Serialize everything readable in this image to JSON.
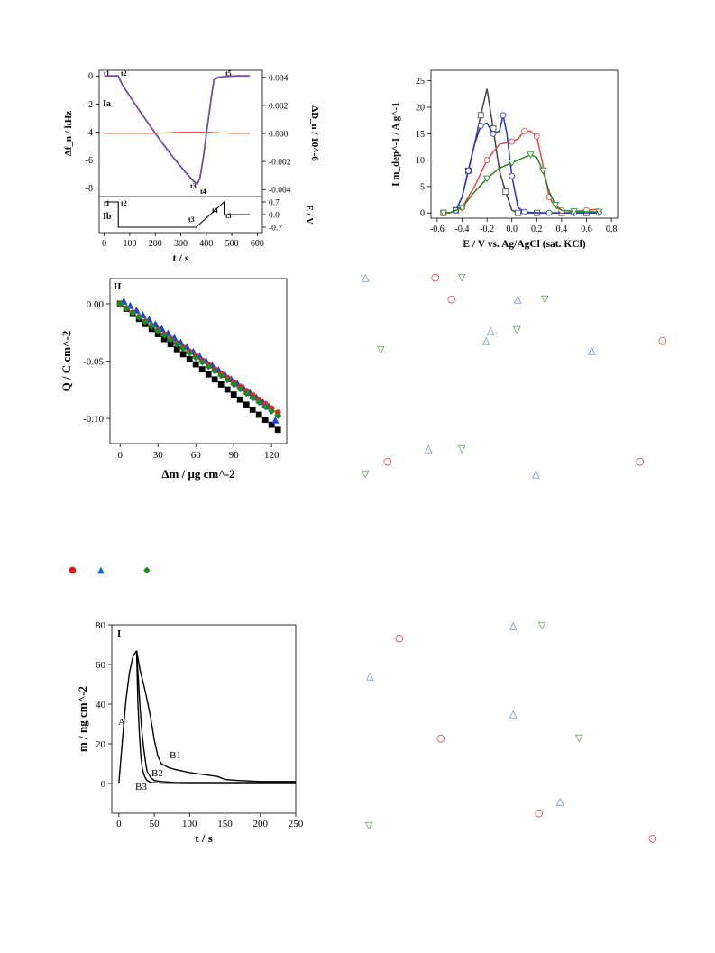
{
  "chart_data": [
    {
      "type": "line",
      "panel": "I",
      "sub_panels": [
        "Ia",
        "Ib"
      ],
      "xlabel": "t / s",
      "ylabel_left": "Δf_n / kHz",
      "ylabel_right_top": "ΔD_n / 10^-6",
      "ylabel_right_bottom": "E / V",
      "x_ticks": [
        "0",
        "100",
        "200",
        "300",
        "400",
        "500",
        "600"
      ],
      "y_ticks_left": [
        "0",
        "-2",
        "-4",
        "-6",
        "-8"
      ],
      "y_ticks_right_top": [
        "0.004",
        "0.002",
        "0.000",
        "-0.002",
        "-0.004"
      ],
      "y_ticks_right_bottom": [
        "0.7",
        "0.0",
        "-0.7"
      ],
      "xlim": [
        -20,
        620
      ],
      "ylim_left": [
        -8.6,
        0.4
      ],
      "ylim_right_top": [
        -0.0045,
        0.0045
      ],
      "ylim_right_bottom": [
        -1,
        1
      ],
      "time_markers": [
        "t1",
        "t2",
        "t3",
        "t4",
        "t5"
      ],
      "series": [
        {
          "name": "",
          "axis": "left",
          "color": "#7a4aa8",
          "x": [
            0,
            55,
            70,
            120,
            170,
            220,
            270,
            320,
            350,
            365,
            375,
            390,
            405,
            420,
            430,
            445,
            470,
            520,
            570
          ],
          "y": [
            0,
            0,
            -0.6,
            -2.0,
            -3.3,
            -4.6,
            -5.8,
            -6.9,
            -7.5,
            -7.7,
            -7.3,
            -5.6,
            -3.5,
            -1.5,
            -0.3,
            -0.1,
            -0.05,
            0,
            0
          ]
        },
        {
          "name": "",
          "axis": "right_top",
          "color": "#e06040",
          "x": [
            0,
            100,
            200,
            300,
            400,
            500,
            570
          ],
          "y": [
            0.0,
            0.0,
            0.0,
            0.0001,
            0.0001,
            0.0,
            0.0
          ]
        },
        {
          "name": "",
          "axis": "right_bottom",
          "color": "#000000",
          "x": [
            0,
            55,
            55,
            360,
            470,
            470,
            570
          ],
          "y": [
            0.7,
            0.7,
            -0.7,
            -0.7,
            0.7,
            0.0,
            0.0
          ]
        }
      ]
    },
    {
      "type": "line",
      "xlabel": "E / V vs. Ag/AgCl (sat. KCl)",
      "ylabel": "I m_dep^-1 / A g^-1",
      "x_ticks": [
        "-0.6",
        "-0.4",
        "-0.2",
        "0.0",
        "0.2",
        "0.4",
        "0.6",
        "0.8"
      ],
      "y_ticks": [
        "0",
        "5",
        "10",
        "15",
        "20",
        "25"
      ],
      "xlim": [
        -0.65,
        0.85
      ],
      "ylim": [
        -1,
        27
      ],
      "series": [
        {
          "name": "",
          "color": "#444444",
          "marker": "square",
          "x": [
            -0.55,
            -0.5,
            -0.45,
            -0.4,
            -0.35,
            -0.3,
            -0.25,
            -0.2,
            -0.15,
            -0.1,
            -0.05,
            0.0,
            0.05,
            0.1,
            0.2,
            0.3,
            0.4,
            0.5,
            0.6,
            0.7
          ],
          "y": [
            0,
            0,
            0.5,
            3,
            8,
            13,
            18.5,
            23.5,
            16,
            8,
            4,
            0.5,
            0,
            0,
            0,
            0,
            0,
            0,
            0,
            0
          ]
        },
        {
          "name": "",
          "color": "#2233cc",
          "marker": "circle",
          "x": [
            -0.55,
            -0.5,
            -0.45,
            -0.4,
            -0.35,
            -0.3,
            -0.25,
            -0.2,
            -0.15,
            -0.1,
            -0.07,
            -0.04,
            0.0,
            0.05,
            0.1,
            0.2,
            0.3,
            0.4,
            0.5,
            0.6,
            0.7
          ],
          "y": [
            0,
            0,
            0.5,
            3,
            8,
            13,
            16.5,
            17,
            15,
            15.5,
            18.5,
            15,
            7,
            1,
            0.2,
            0,
            0,
            0,
            0,
            0,
            0
          ]
        },
        {
          "name": "",
          "color": "#ee4444",
          "marker": "circle",
          "x": [
            -0.55,
            -0.5,
            -0.4,
            -0.3,
            -0.2,
            -0.1,
            0.0,
            0.05,
            0.1,
            0.15,
            0.2,
            0.25,
            0.3,
            0.35,
            0.4,
            0.5,
            0.6,
            0.7
          ],
          "y": [
            0,
            0,
            1,
            5,
            10,
            13,
            13.5,
            14,
            15.5,
            15.5,
            14.5,
            9,
            3,
            1,
            0.5,
            0.3,
            0.5,
            0.7
          ]
        },
        {
          "name": "",
          "color": "#228822",
          "marker": "triangle-down",
          "x": [
            -0.55,
            -0.5,
            -0.4,
            -0.3,
            -0.2,
            -0.1,
            0.0,
            0.1,
            0.15,
            0.2,
            0.25,
            0.3,
            0.35,
            0.4,
            0.5,
            0.6,
            0.7
          ],
          "y": [
            0,
            0,
            1,
            4,
            6.5,
            8.5,
            9.5,
            10.5,
            11,
            10.5,
            8,
            4,
            1.5,
            0.5,
            0.3,
            0.2,
            0.2
          ]
        }
      ]
    },
    {
      "type": "scatter",
      "panel": "II",
      "xlabel": "Δm / μg cm^-2",
      "ylabel": "Q / C cm^-2",
      "x_ticks": [
        "0",
        "30",
        "60",
        "90",
        "120"
      ],
      "y_ticks": [
        "0.00",
        "-0.05",
        "-0.10"
      ],
      "xlim": [
        -8,
        132
      ],
      "ylim": [
        -0.122,
        0.022
      ],
      "series": [
        {
          "name": "",
          "color": "#000000",
          "marker": "square",
          "x": [
            0,
            5,
            10,
            15,
            20,
            25,
            30,
            35,
            40,
            45,
            50,
            55,
            60,
            65,
            70,
            75,
            80,
            85,
            90,
            95,
            100,
            105,
            110,
            115,
            120,
            125
          ],
          "y": [
            0,
            -0.0044,
            -0.0088,
            -0.0132,
            -0.0176,
            -0.022,
            -0.0264,
            -0.0308,
            -0.0352,
            -0.0396,
            -0.044,
            -0.0484,
            -0.0528,
            -0.0572,
            -0.0616,
            -0.066,
            -0.0704,
            -0.0748,
            -0.0792,
            -0.0836,
            -0.088,
            -0.0924,
            -0.0968,
            -0.1012,
            -0.1056,
            -0.11
          ]
        },
        {
          "name": "",
          "color": "#1144ee",
          "marker": "triangle-up",
          "x": [
            3,
            8,
            13,
            18,
            23,
            28,
            33,
            38,
            43,
            48,
            53,
            58,
            63,
            68,
            73,
            78,
            83,
            88,
            93,
            98,
            103,
            108,
            113,
            118,
            123
          ],
          "y": [
            0.002,
            -0.0018,
            -0.0058,
            -0.0098,
            -0.0138,
            -0.0178,
            -0.0218,
            -0.0258,
            -0.0298,
            -0.0338,
            -0.0378,
            -0.0418,
            -0.0458,
            -0.0498,
            -0.0538,
            -0.0578,
            -0.0618,
            -0.0658,
            -0.0698,
            -0.0738,
            -0.0778,
            -0.0818,
            -0.0858,
            -0.0898,
            -0.1018
          ]
        },
        {
          "name": "",
          "color": "#ee2222",
          "marker": "circle",
          "x": [
            0,
            5,
            10,
            15,
            20,
            25,
            30,
            35,
            40,
            45,
            50,
            55,
            60,
            65,
            70,
            75,
            80,
            85,
            90,
            95,
            100,
            105,
            110,
            115,
            120,
            125
          ],
          "y": [
            0,
            -0.0038,
            -0.0076,
            -0.0114,
            -0.0152,
            -0.019,
            -0.0228,
            -0.0266,
            -0.0304,
            -0.0342,
            -0.038,
            -0.0418,
            -0.0456,
            -0.0494,
            -0.0532,
            -0.057,
            -0.0608,
            -0.0646,
            -0.0684,
            -0.0722,
            -0.076,
            -0.0798,
            -0.0836,
            -0.0874,
            -0.0912,
            -0.095
          ]
        },
        {
          "name": "",
          "color": "#228822",
          "marker": "diamond",
          "x": [
            0,
            5,
            10,
            15,
            20,
            25,
            30,
            35,
            40,
            45,
            50,
            55,
            60,
            65,
            70,
            75,
            80,
            85,
            90,
            95,
            100,
            105,
            110,
            115,
            120,
            125
          ],
          "y": [
            0,
            -0.0039,
            -0.0078,
            -0.0117,
            -0.0156,
            -0.0195,
            -0.0234,
            -0.0273,
            -0.0312,
            -0.0351,
            -0.039,
            -0.0429,
            -0.0468,
            -0.0507,
            -0.0546,
            -0.0585,
            -0.0624,
            -0.0663,
            -0.0702,
            -0.0741,
            -0.078,
            -0.0819,
            -0.0858,
            -0.0897,
            -0.0936,
            -0.0975
          ]
        }
      ]
    },
    {
      "type": "line",
      "panel": "I",
      "xlabel": "t / s",
      "ylabel": "m / ng cm^-2",
      "x_ticks": [
        "0",
        "50",
        "100",
        "150",
        "200",
        "250"
      ],
      "y_ticks": [
        "0",
        "20",
        "40",
        "60",
        "80"
      ],
      "xlim": [
        -10,
        250
      ],
      "ylim": [
        -15,
        80
      ],
      "curve_labels": [
        "A",
        "B1",
        "B2",
        "B3"
      ],
      "series": [
        {
          "name": "A",
          "color": "#000000",
          "x": [
            0,
            5,
            10,
            15,
            20,
            25
          ],
          "y": [
            0,
            22,
            42,
            56,
            64,
            67
          ]
        },
        {
          "name": "B1",
          "color": "#000000",
          "x": [
            25,
            30,
            35,
            40,
            45,
            50,
            55,
            60,
            70,
            80,
            100,
            120,
            140,
            150,
            170,
            200,
            250
          ],
          "y": [
            67,
            57,
            50,
            42,
            33,
            22,
            14,
            10,
            8,
            7,
            5.5,
            4.5,
            3.5,
            2,
            1.5,
            1,
            1
          ]
        },
        {
          "name": "B2",
          "color": "#000000",
          "x": [
            25,
            28,
            30,
            32,
            35,
            38,
            40,
            45,
            50,
            60,
            80,
            100,
            150,
            250
          ],
          "y": [
            67,
            50,
            38,
            28,
            18,
            10,
            6,
            3,
            1.5,
            1,
            0.5,
            0.5,
            0.5,
            0.5
          ]
        },
        {
          "name": "B3",
          "color": "#000000",
          "x": [
            25,
            27,
            29,
            31,
            33,
            35,
            37,
            40,
            45,
            60,
            100,
            250
          ],
          "y": [
            67,
            40,
            25,
            14,
            8,
            5,
            3,
            1.5,
            0.5,
            0.2,
            0,
            0
          ]
        }
      ]
    }
  ],
  "legend_symbols": {
    "items": [
      {
        "symbol": "●",
        "color": "#ee1111"
      },
      {
        "symbol": "▲",
        "color": "#1166cc"
      },
      {
        "symbol": "◆",
        "color": "#228822"
      }
    ]
  },
  "text_symbols": [
    {
      "symbol": "△",
      "color": "#3a78c0"
    },
    {
      "symbol": "○",
      "color": "#d62020"
    },
    {
      "symbol": "▽",
      "color": "#2a8a2a"
    },
    {
      "symbol": "○",
      "color": "#d62020"
    },
    {
      "symbol": "△",
      "color": "#3a78c0"
    },
    {
      "symbol": "▽",
      "color": "#2a8a2a"
    },
    {
      "symbol": "△",
      "color": "#3a78c0"
    },
    {
      "symbol": "▽",
      "color": "#2a8a2a"
    },
    {
      "symbol": "△",
      "color": "#3a78c0"
    },
    {
      "symbol": "○",
      "color": "#d62020"
    },
    {
      "symbol": "▽",
      "color": "#2a8a2a"
    },
    {
      "symbol": "△",
      "color": "#3a78c0"
    },
    {
      "symbol": "△",
      "color": "#3a78c0"
    },
    {
      "symbol": "▽",
      "color": "#2a8a2a"
    },
    {
      "symbol": "○",
      "color": "#d62020"
    },
    {
      "symbol": "○",
      "color": "#d62020"
    },
    {
      "symbol": "▽",
      "color": "#2a8a2a"
    },
    {
      "symbol": "△",
      "color": "#3a78c0"
    },
    {
      "symbol": "△",
      "color": "#3a78c0"
    },
    {
      "symbol": "▽",
      "color": "#2a8a2a"
    },
    {
      "symbol": "○",
      "color": "#d62020"
    },
    {
      "symbol": "△",
      "color": "#3a78c0"
    },
    {
      "symbol": "△",
      "color": "#3a78c0"
    },
    {
      "symbol": "○",
      "color": "#d62020"
    },
    {
      "symbol": "▽",
      "color": "#2a8a2a"
    },
    {
      "symbol": "△",
      "color": "#3a78c0"
    },
    {
      "symbol": "○",
      "color": "#d62020"
    },
    {
      "symbol": "▽",
      "color": "#2a8a2a"
    },
    {
      "symbol": "○",
      "color": "#d62020"
    }
  ]
}
